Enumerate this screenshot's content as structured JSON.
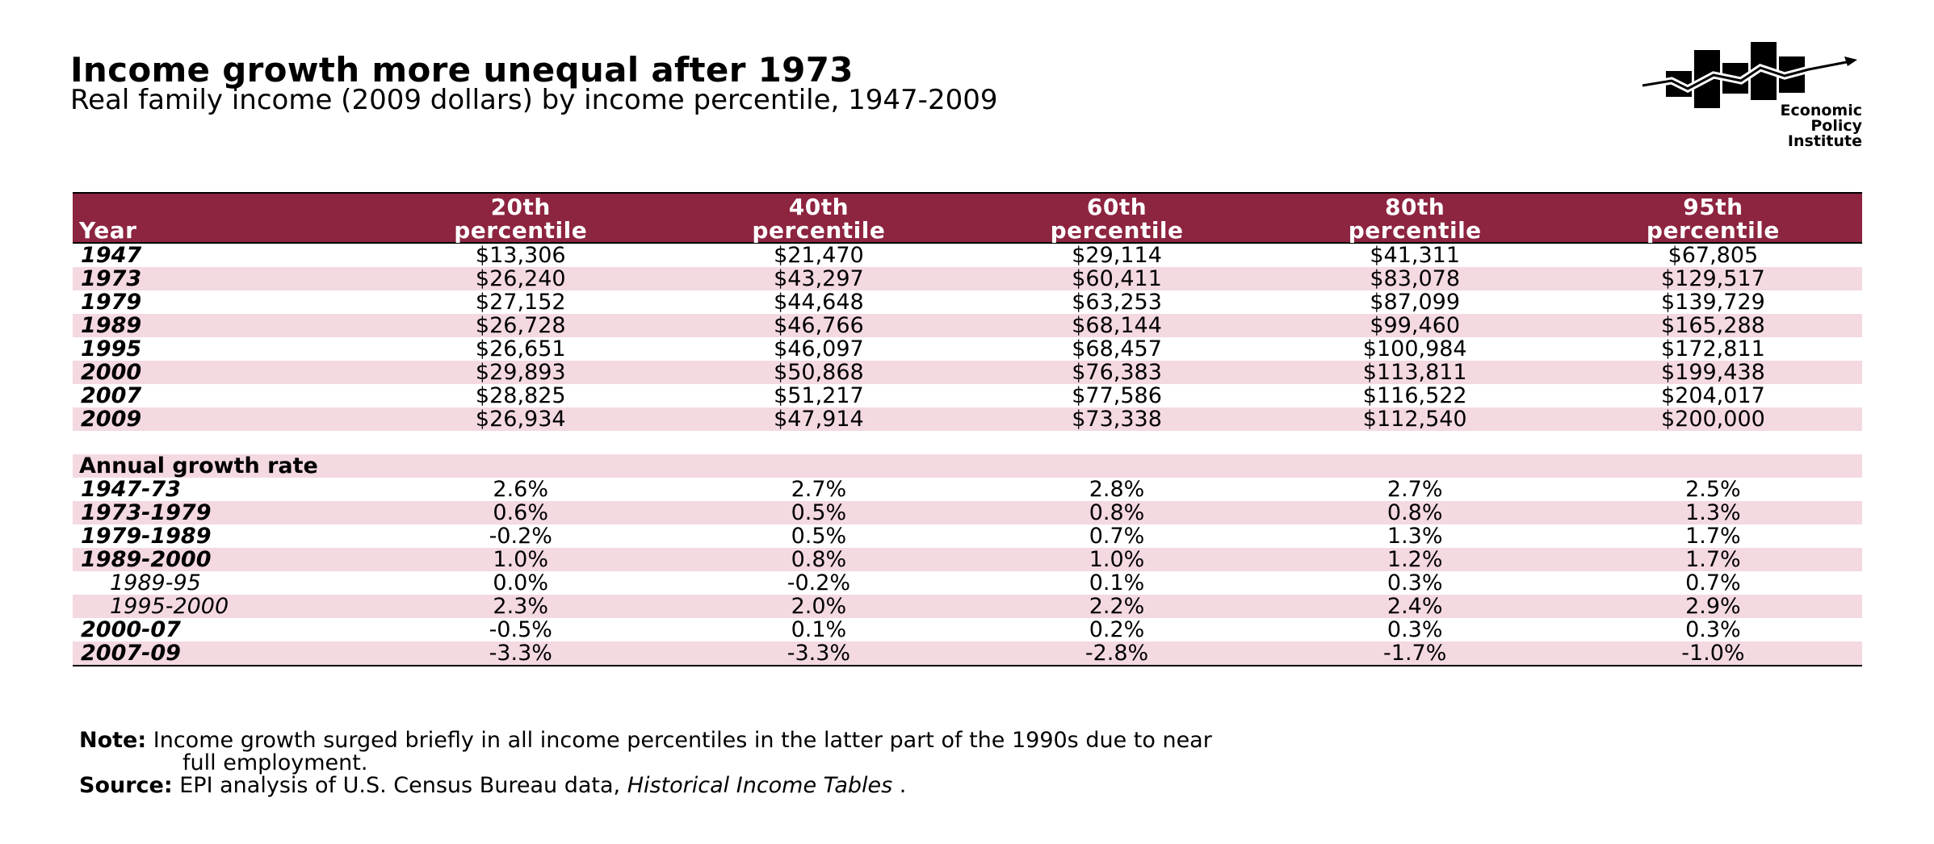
{
  "title": "Income growth more unequal after 1973",
  "subtitle": "Real family income (2009 dollars) by income percentile, 1947-2009",
  "logo": {
    "line1": "Economic",
    "line2": "Policy",
    "line3": "Institute"
  },
  "chart_data": {
    "type": "table",
    "columns": [
      {
        "top": "",
        "bottom": "Year"
      },
      {
        "top": "20th",
        "bottom": "percentile"
      },
      {
        "top": "40th",
        "bottom": "percentile"
      },
      {
        "top": "60th",
        "bottom": "percentile"
      },
      {
        "top": "80th",
        "bottom": "percentile"
      },
      {
        "top": "95th",
        "bottom": "percentile"
      }
    ],
    "income_rows": [
      {
        "label": "1947",
        "values": [
          "$13,306",
          "$21,470",
          "$29,114",
          "$41,311",
          "$67,805"
        ]
      },
      {
        "label": "1973",
        "values": [
          "$26,240",
          "$43,297",
          "$60,411",
          "$83,078",
          "$129,517"
        ]
      },
      {
        "label": "1979",
        "values": [
          "$27,152",
          "$44,648",
          "$63,253",
          "$87,099",
          "$139,729"
        ]
      },
      {
        "label": "1989",
        "values": [
          "$26,728",
          "$46,766",
          "$68,144",
          "$99,460",
          "$165,288"
        ]
      },
      {
        "label": "1995",
        "values": [
          "$26,651",
          "$46,097",
          "$68,457",
          "$100,984",
          "$172,811"
        ]
      },
      {
        "label": "2000",
        "values": [
          "$29,893",
          "$50,868",
          "$76,383",
          "$113,811",
          "$199,438"
        ]
      },
      {
        "label": "2007",
        "values": [
          "$28,825",
          "$51,217",
          "$77,586",
          "$116,522",
          "$204,017"
        ]
      },
      {
        "label": "2009",
        "values": [
          "$26,934",
          "$47,914",
          "$73,338",
          "$112,540",
          "$200,000"
        ]
      }
    ],
    "growth_section_label": "Annual growth rate",
    "growth_rows": [
      {
        "label": "1947-73",
        "sub": false,
        "values": [
          "2.6%",
          "2.7%",
          "2.8%",
          "2.7%",
          "2.5%"
        ]
      },
      {
        "label": "1973-1979",
        "sub": false,
        "values": [
          "0.6%",
          "0.5%",
          "0.8%",
          "0.8%",
          "1.3%"
        ]
      },
      {
        "label": "1979-1989",
        "sub": false,
        "values": [
          "-0.2%",
          "0.5%",
          "0.7%",
          "1.3%",
          "1.7%"
        ]
      },
      {
        "label": "1989-2000",
        "sub": false,
        "values": [
          "1.0%",
          "0.8%",
          "1.0%",
          "1.2%",
          "1.7%"
        ]
      },
      {
        "label": "1989-95",
        "sub": true,
        "values": [
          "0.0%",
          "-0.2%",
          "0.1%",
          "0.3%",
          "0.7%"
        ]
      },
      {
        "label": "1995-2000",
        "sub": true,
        "values": [
          "2.3%",
          "2.0%",
          "2.2%",
          "2.4%",
          "2.9%"
        ]
      },
      {
        "label": "2000-07",
        "sub": false,
        "values": [
          "-0.5%",
          "0.1%",
          "0.2%",
          "0.3%",
          "0.3%"
        ]
      },
      {
        "label": "2007-09",
        "sub": false,
        "values": [
          "-3.3%",
          "-3.3%",
          "-2.8%",
          "-1.7%",
          "-1.0%"
        ]
      }
    ],
    "header_color": "#8d2440",
    "stripe_color": "#f4d9e1"
  },
  "notes": {
    "note_label": "Note:",
    "note_line1": "Income growth surged briefly in all income percentiles in the latter part of the 1990s due to near",
    "note_line2": "full employment.",
    "source_label": "Source:",
    "source_text": "EPI analysis of U.S. Census Bureau data,",
    "source_italic": "Historical Income Tables",
    "source_end": "."
  }
}
